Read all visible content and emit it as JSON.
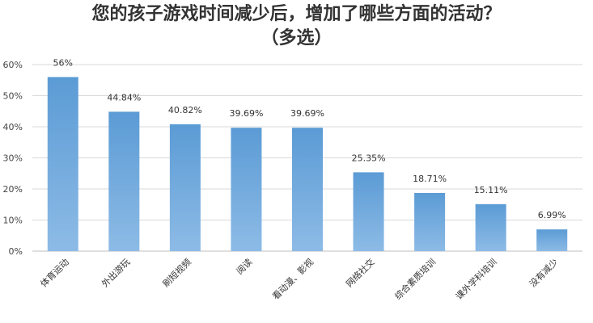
{
  "chart_data": {
    "type": "bar",
    "title": "您的孩子游戏时间减少后，增加了哪些方面的活动？",
    "subtitle": "（多选）",
    "categories": [
      "体育运动",
      "外出游玩",
      "刷短视频",
      "阅读",
      "看动漫、影视",
      "网络社交",
      "综合素质培训",
      "课外学科培训",
      "没有减少"
    ],
    "values": [
      56,
      44.84,
      40.82,
      39.69,
      39.69,
      25.35,
      18.71,
      15.11,
      6.99
    ],
    "data_labels": [
      "56%",
      "44.84%",
      "40.82%",
      "39.69%",
      "39.69%",
      "25.35%",
      "18.71%",
      "15.11%",
      "6.99%"
    ],
    "ylim": [
      0,
      60
    ],
    "yticks": [
      "0%",
      "10%",
      "20%",
      "30%",
      "40%",
      "50%",
      "60%"
    ],
    "grid": true,
    "bar_color": "#5b9bd5",
    "bar_color_light": "#8dbbe6",
    "grid_color": "#d9d9d9"
  }
}
